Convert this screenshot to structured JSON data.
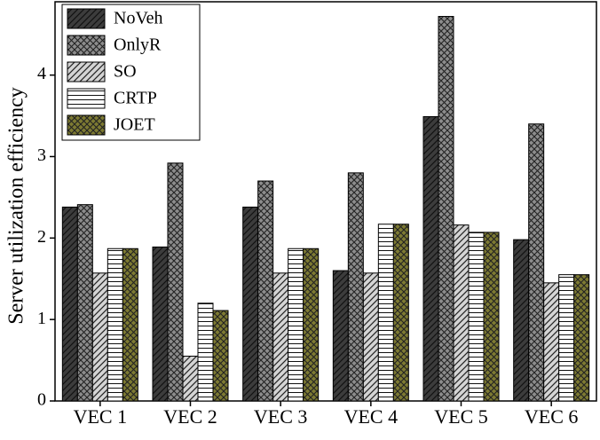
{
  "chart_data": {
    "type": "bar",
    "y_label": "Server utilization efficiency",
    "categories": [
      "VEC 1",
      "VEC 2",
      "VEC 3",
      "VEC 4",
      "VEC 5",
      "VEC 6"
    ],
    "series": [
      {
        "name": "NoVeh",
        "color": "#3c3c3c",
        "hatch": "diagonal",
        "values": [
          2.38,
          1.89,
          2.38,
          1.6,
          3.49,
          1.98
        ]
      },
      {
        "name": "OnlyR",
        "color": "#8c8c8c",
        "hatch": "cross",
        "values": [
          2.41,
          2.92,
          2.7,
          2.8,
          4.72,
          3.4
        ]
      },
      {
        "name": "SO",
        "color": "#d4d4d4",
        "hatch": "diagonal",
        "values": [
          1.57,
          0.55,
          1.57,
          1.57,
          2.16,
          1.45
        ]
      },
      {
        "name": "CRTP",
        "color": "#ffffff",
        "hatch": "horizontal",
        "values": [
          1.87,
          1.2,
          1.87,
          2.17,
          2.07,
          1.55
        ]
      },
      {
        "name": "JOET",
        "color": "#7d7a32",
        "hatch": "cross",
        "values": [
          1.87,
          1.11,
          1.87,
          2.17,
          2.07,
          1.55
        ]
      }
    ],
    "ylim": [
      0,
      4.9
    ],
    "yticks": [
      0,
      1,
      2,
      3,
      4
    ],
    "grid": false,
    "legend": "upper left"
  }
}
